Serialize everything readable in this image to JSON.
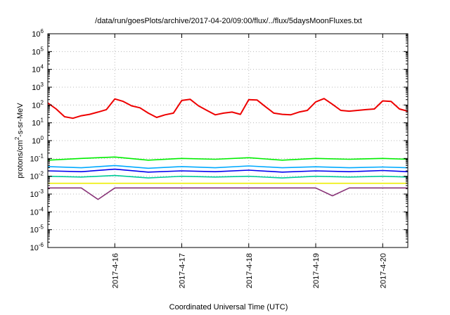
{
  "chart_data": {
    "type": "line",
    "title": "/data/run/goesPlots/archive/2017-04-20/09:00/flux/../flux/5daysMoonFluxes.txt",
    "xlabel": "Coordinated Universal Time (UTC)",
    "ylabel_parts": [
      "protons/cm",
      "2",
      "-s-sr-MeV"
    ],
    "yscale": "log",
    "ylim": [
      1e-06,
      1000000.0
    ],
    "y_ticks": [
      {
        "base": "10",
        "exp": "-6",
        "value": 1e-06
      },
      {
        "base": "10",
        "exp": "-5",
        "value": 1e-05
      },
      {
        "base": "10",
        "exp": "-4",
        "value": 0.0001
      },
      {
        "base": "10",
        "exp": "-3",
        "value": 0.001
      },
      {
        "base": "10",
        "exp": "-2",
        "value": 0.01
      },
      {
        "base": "10",
        "exp": "-1",
        "value": 0.1
      },
      {
        "base": "10",
        "exp": "0",
        "value": 1
      },
      {
        "base": "10",
        "exp": "1",
        "value": 10
      },
      {
        "base": "10",
        "exp": "2",
        "value": 100
      },
      {
        "base": "10",
        "exp": "3",
        "value": 1000
      },
      {
        "base": "10",
        "exp": "4",
        "value": 10000
      },
      {
        "base": "10",
        "exp": "5",
        "value": 100000
      },
      {
        "base": "10",
        "exp": "6",
        "value": 1000000
      }
    ],
    "xlim": [
      "2017-04-15 00:00",
      "2017-04-20 09:00"
    ],
    "x_ticks": [
      {
        "label": "2017-4-16",
        "value": "2017-04-16 00:00"
      },
      {
        "label": "2017-4-17",
        "value": "2017-04-17 00:00"
      },
      {
        "label": "2017-4-18",
        "value": "2017-04-18 00:00"
      },
      {
        "label": "2017-4-19",
        "value": "2017-04-19 00:00"
      },
      {
        "label": "2017-4-20",
        "value": "2017-04-20 00:00"
      }
    ],
    "grid": true,
    "legend": "none",
    "series": [
      {
        "color": "#ee0000",
        "x": [
          "2017-04-15 00:00",
          "2017-04-15 03:00",
          "2017-04-15 06:00",
          "2017-04-15 09:00",
          "2017-04-15 12:00",
          "2017-04-15 15:00",
          "2017-04-15 18:00",
          "2017-04-15 21:00",
          "2017-04-16 00:00",
          "2017-04-16 03:00",
          "2017-04-16 06:00",
          "2017-04-16 09:00",
          "2017-04-16 12:00",
          "2017-04-16 15:00",
          "2017-04-16 18:00",
          "2017-04-16 21:00",
          "2017-04-17 00:00",
          "2017-04-17 03:00",
          "2017-04-17 06:00",
          "2017-04-17 09:00",
          "2017-04-17 12:00",
          "2017-04-17 15:00",
          "2017-04-17 18:00",
          "2017-04-17 21:00",
          "2017-04-18 00:00",
          "2017-04-18 03:00",
          "2017-04-18 06:00",
          "2017-04-18 09:00",
          "2017-04-18 12:00",
          "2017-04-18 15:00",
          "2017-04-18 18:00",
          "2017-04-18 21:00",
          "2017-04-19 00:00",
          "2017-04-19 03:00",
          "2017-04-19 06:00",
          "2017-04-19 09:00",
          "2017-04-19 12:00",
          "2017-04-19 15:00",
          "2017-04-19 18:00",
          "2017-04-19 21:00",
          "2017-04-20 00:00",
          "2017-04-20 03:00",
          "2017-04-20 06:00",
          "2017-04-20 09:00"
        ],
        "values": [
          130,
          60,
          22,
          18,
          25,
          30,
          40,
          55,
          220,
          160,
          90,
          70,
          35,
          20,
          28,
          35,
          180,
          210,
          90,
          50,
          28,
          35,
          40,
          30,
          200,
          190,
          80,
          35,
          30,
          28,
          40,
          50,
          150,
          230,
          110,
          50,
          45,
          50,
          55,
          60,
          170,
          160,
          60,
          45
        ]
      },
      {
        "color": "#00ee00",
        "x": [
          "2017-04-15 00:00",
          "2017-04-15 12:00",
          "2017-04-16 00:00",
          "2017-04-16 12:00",
          "2017-04-17 00:00",
          "2017-04-17 12:00",
          "2017-04-18 00:00",
          "2017-04-18 12:00",
          "2017-04-19 00:00",
          "2017-04-19 12:00",
          "2017-04-20 00:00",
          "2017-04-20 09:00"
        ],
        "values": [
          0.08,
          0.1,
          0.12,
          0.08,
          0.1,
          0.09,
          0.11,
          0.08,
          0.1,
          0.09,
          0.1,
          0.09
        ]
      },
      {
        "color": "#00aaff",
        "x": [
          "2017-04-15 00:00",
          "2017-04-15 12:00",
          "2017-04-16 00:00",
          "2017-04-16 12:00",
          "2017-04-17 00:00",
          "2017-04-17 12:00",
          "2017-04-18 00:00",
          "2017-04-18 12:00",
          "2017-04-19 00:00",
          "2017-04-19 12:00",
          "2017-04-20 00:00",
          "2017-04-20 09:00"
        ],
        "values": [
          0.035,
          0.03,
          0.04,
          0.028,
          0.035,
          0.03,
          0.038,
          0.03,
          0.034,
          0.03,
          0.033,
          0.03
        ]
      },
      {
        "color": "#0000ee",
        "x": [
          "2017-04-15 00:00",
          "2017-04-15 12:00",
          "2017-04-16 00:00",
          "2017-04-16 12:00",
          "2017-04-17 00:00",
          "2017-04-17 12:00",
          "2017-04-18 00:00",
          "2017-04-18 12:00",
          "2017-04-19 00:00",
          "2017-04-19 12:00",
          "2017-04-20 00:00",
          "2017-04-20 09:00"
        ],
        "values": [
          0.02,
          0.018,
          0.025,
          0.017,
          0.02,
          0.018,
          0.022,
          0.017,
          0.02,
          0.018,
          0.021,
          0.018
        ]
      },
      {
        "color": "#00cc99",
        "x": [
          "2017-04-15 00:00",
          "2017-04-15 12:00",
          "2017-04-16 00:00",
          "2017-04-16 12:00",
          "2017-04-17 00:00",
          "2017-04-17 12:00",
          "2017-04-18 00:00",
          "2017-04-18 12:00",
          "2017-04-19 00:00",
          "2017-04-19 12:00",
          "2017-04-20 00:00",
          "2017-04-20 09:00"
        ],
        "values": [
          0.01,
          0.009,
          0.011,
          0.008,
          0.01,
          0.009,
          0.01,
          0.008,
          0.01,
          0.009,
          0.01,
          0.009
        ]
      },
      {
        "color": "#eeee00",
        "x": [
          "2017-04-15 00:00",
          "2017-04-20 09:00"
        ],
        "values": [
          0.004,
          0.004
        ]
      },
      {
        "color": "#883377",
        "x": [
          "2017-04-15 00:00",
          "2017-04-15 12:00",
          "2017-04-15 18:00",
          "2017-04-16 00:00",
          "2017-04-16 12:00",
          "2017-04-17 00:00",
          "2017-04-17 12:00",
          "2017-04-18 00:00",
          "2017-04-18 12:00",
          "2017-04-19 00:00",
          "2017-04-19 06:00",
          "2017-04-19 12:00",
          "2017-04-20 00:00",
          "2017-04-20 09:00"
        ],
        "values": [
          0.0022,
          0.0022,
          0.0005,
          0.0022,
          0.0022,
          0.0022,
          0.0022,
          0.0022,
          0.0022,
          0.0022,
          0.0008,
          0.0022,
          0.0022,
          0.0022
        ]
      }
    ]
  }
}
